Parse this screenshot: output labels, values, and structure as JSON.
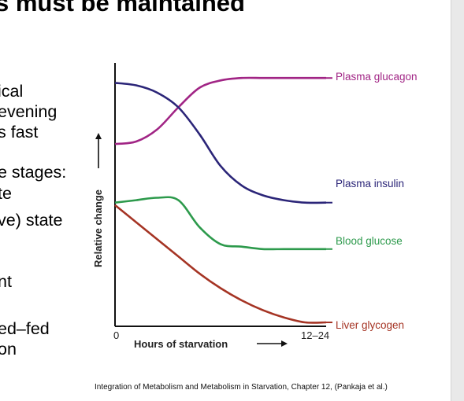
{
  "slide": {
    "title": "s must be maintained",
    "bullets": [
      "ical",
      "evening",
      "s fast",
      "e stages:",
      "te",
      "ve) state",
      "nt",
      "ed–fed",
      "on"
    ],
    "citation": "Integration of Metabolism and Metabolism in Starvation, Chapter 12, (Pankaja et al.)"
  },
  "chart_data": {
    "type": "line",
    "xlabel": "Hours of starvation",
    "ylabel": "Relative change",
    "x_ticks": [
      "0",
      "12–24"
    ],
    "x": [
      0,
      0.1,
      0.2,
      0.3,
      0.4,
      0.5,
      0.6,
      0.7,
      0.8,
      0.9,
      1.0
    ],
    "series": [
      {
        "name": "Plasma glucagon",
        "color": "#a12585",
        "values": [
          0.73,
          0.74,
          0.79,
          0.88,
          0.96,
          0.99,
          1.0,
          1.0,
          1.0,
          1.0,
          1.0
        ]
      },
      {
        "name": "Plasma insulin",
        "color": "#2b2578",
        "values": [
          0.98,
          0.97,
          0.94,
          0.88,
          0.77,
          0.64,
          0.56,
          0.52,
          0.5,
          0.49,
          0.49
        ]
      },
      {
        "name": "Blood glucose",
        "color": "#2d9a4c",
        "values": [
          0.49,
          0.5,
          0.51,
          0.5,
          0.39,
          0.32,
          0.31,
          0.3,
          0.3,
          0.3,
          0.3
        ]
      },
      {
        "name": "Liver glycogen",
        "color": "#a53424",
        "values": [
          0.48,
          0.41,
          0.34,
          0.27,
          0.2,
          0.14,
          0.09,
          0.05,
          0.02,
          0.0,
          0.0
        ]
      }
    ],
    "ylim": [
      0,
      1.02
    ],
    "legend": "right of curves"
  }
}
